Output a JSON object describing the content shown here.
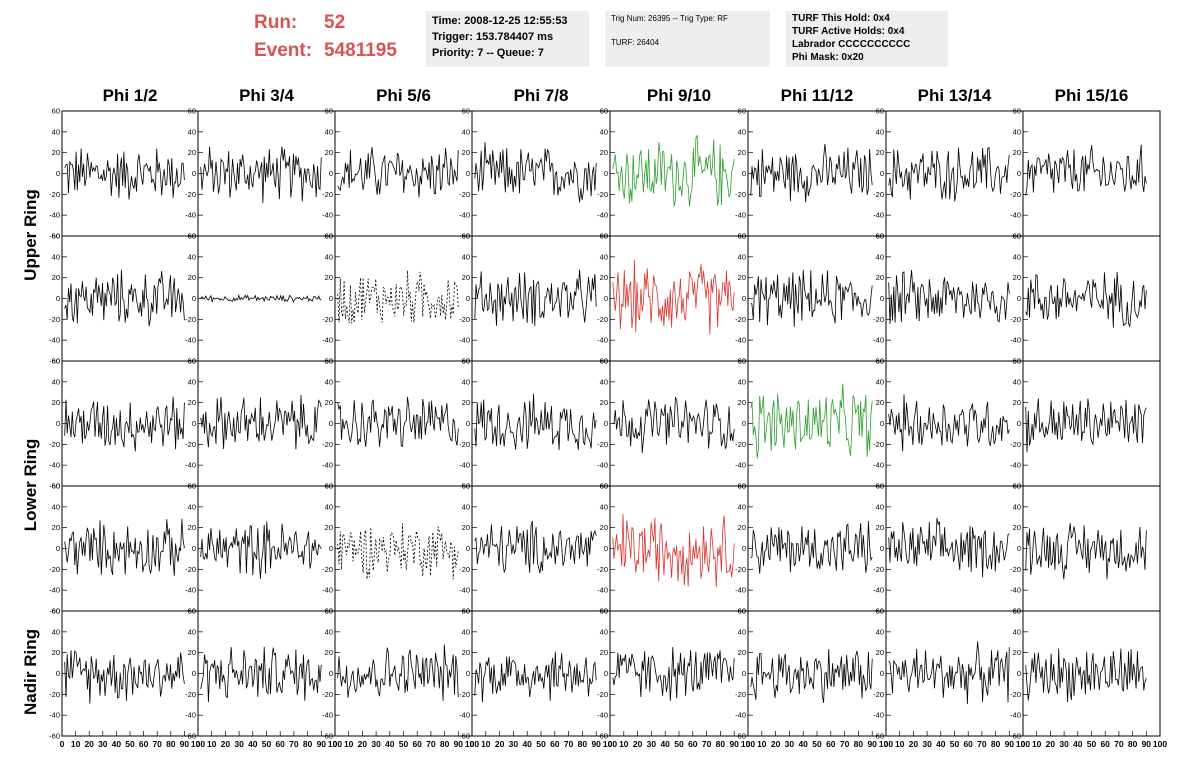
{
  "header": {
    "run_label": "Run:",
    "run_value": "52",
    "event_label": "Event:",
    "event_value": "5481195",
    "time": "Time: 2008-12-25 12:55:53",
    "trigger": "Trigger: 153.784407 ms",
    "priority": "Priority: 7 -- Queue: 7",
    "trig_num": "Trig Num: 26395 -- Trig Type: RF",
    "turf": "TURF: 26404",
    "turf_this_hold": "TURF This Hold: 0x4",
    "turf_active_holds": "TURF Active Holds: 0x4",
    "labrador": "Labrador CCCCCCCCCC",
    "phi_mask": "Phi Mask: 0x20"
  },
  "colors": {
    "run_text": "#d9534f",
    "trace_default": "#000000",
    "trace_triggered": "#2e9e2e",
    "trace_triggered_red": "#d9342f",
    "info_box": "#eeeeee"
  },
  "chart_data": {
    "type": "line",
    "title": "",
    "columns": [
      "Phi 1/2",
      "Phi 3/4",
      "Phi 5/6",
      "Phi 7/8",
      "Phi 9/10",
      "Phi 11/12",
      "Phi 13/14",
      "Phi 15/16"
    ],
    "rows": [
      "Upper Ring",
      "Upper Ring",
      "Lower Ring",
      "Lower Ring",
      "Nadir Ring"
    ],
    "row_titles": [
      "Upper Ring",
      "Lower Ring",
      "Nadir Ring"
    ],
    "xlim": [
      0,
      100
    ],
    "ylim": [
      -60,
      60
    ],
    "x_ticks": [
      "0",
      "10",
      "20",
      "30",
      "40",
      "50",
      "60",
      "70",
      "80",
      "90",
      "100"
    ],
    "y_ticks": [
      "60",
      "40",
      "20",
      "0",
      "-20",
      "-40",
      "-60"
    ],
    "grid": false,
    "panel_styles": [
      [
        "black",
        "black",
        "black",
        "black",
        "green",
        "black",
        "black",
        "black"
      ],
      [
        "black",
        "flat",
        "dotted",
        "black",
        "red",
        "black",
        "black",
        "black"
      ],
      [
        "black",
        "black",
        "black",
        "black",
        "black",
        "green",
        "black",
        "black"
      ],
      [
        "black",
        "black",
        "dotted",
        "black",
        "red",
        "black",
        "black",
        "black"
      ],
      [
        "black",
        "black",
        "black",
        "black",
        "black",
        "black",
        "black",
        "black"
      ]
    ],
    "trace_amplitude_typical": 25,
    "trace_points": 96
  }
}
